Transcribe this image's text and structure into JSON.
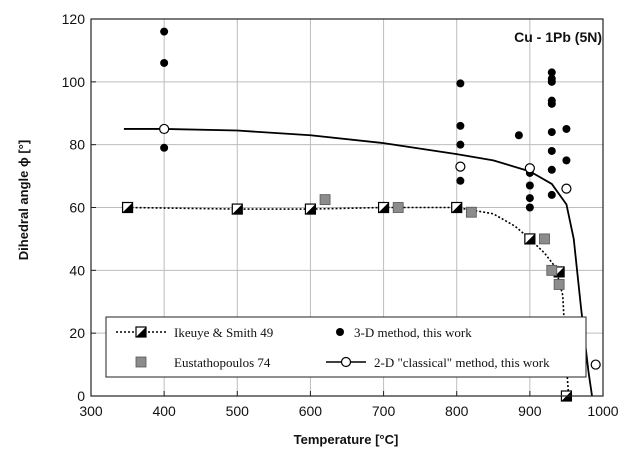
{
  "chart_data": {
    "type": "scatter",
    "title": "",
    "annotation": "Cu - 1Pb (5N)",
    "xlabel": "Temperature [°C]",
    "ylabel": "Dihedral angle ϕ [°]",
    "xlim": [
      300,
      1000
    ],
    "ylim": [
      0,
      120
    ],
    "xticks": [
      300,
      400,
      500,
      600,
      700,
      800,
      900,
      1000
    ],
    "yticks": [
      0,
      20,
      40,
      60,
      80,
      100,
      120
    ],
    "grid": true,
    "legend_position": "bottom",
    "series": [
      {
        "name": "Ikeuye & Smith 49",
        "marker": "half-filled-square",
        "line": "dotted",
        "x": [
          350,
          500,
          600,
          700,
          800,
          900,
          940,
          950
        ],
        "y": [
          60,
          59.5,
          59.5,
          60,
          60,
          50,
          39.5,
          0
        ]
      },
      {
        "name": "3-D method, this work",
        "marker": "filled-circle",
        "line": "none",
        "x": [
          400,
          400,
          400,
          805,
          805,
          805,
          805,
          805,
          885,
          900,
          900,
          900,
          900,
          930,
          930,
          930,
          930,
          930,
          930,
          930,
          930,
          930,
          950,
          950
        ],
        "y": [
          116,
          106,
          79,
          99.5,
          86,
          80,
          73,
          68.5,
          83,
          71,
          67,
          63,
          60,
          103,
          101,
          100,
          94,
          93,
          84,
          78,
          72,
          64,
          85,
          75
        ]
      },
      {
        "name": "Eustathopoulos 74",
        "marker": "gray-square",
        "line": "none",
        "x": [
          620,
          720,
          820,
          920,
          930,
          940
        ],
        "y": [
          62.5,
          60,
          58.5,
          50,
          40,
          35.5
        ]
      },
      {
        "name": "2-D \"classical\" method, this work",
        "marker": "open-circle",
        "line": "solid",
        "x": [
          400,
          805,
          900,
          950,
          990
        ],
        "y": [
          85,
          73,
          72.5,
          66,
          10
        ]
      }
    ],
    "fit_curves": {
      "solid_2d": {
        "x": [
          345,
          400,
          500,
          600,
          700,
          800,
          850,
          900,
          930,
          950,
          960,
          970,
          980,
          985
        ],
        "y": [
          85,
          85,
          84.5,
          83,
          80.5,
          77,
          75,
          71.5,
          67.5,
          61,
          50,
          28,
          8,
          0
        ]
      },
      "dotted_ikeuye": {
        "x": [
          350,
          500,
          600,
          700,
          800,
          850,
          880,
          900,
          920,
          935,
          945,
          950,
          953
        ],
        "y": [
          60,
          59.5,
          59.5,
          60,
          60,
          58,
          54,
          50,
          45.5,
          41,
          32,
          10,
          0
        ]
      }
    }
  },
  "colors": {
    "axis": "#222222",
    "grid": "#bdbdbd",
    "marker_fill": "#000000",
    "gray_square": "#8c8c8c",
    "curve": "#000000"
  }
}
